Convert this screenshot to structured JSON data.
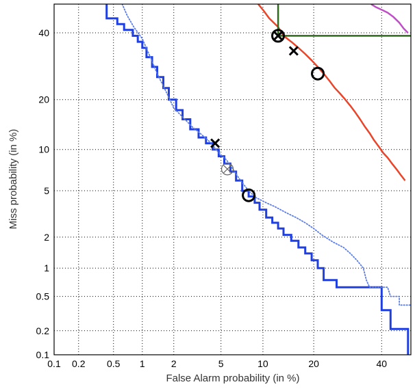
{
  "chart_data": {
    "type": "line",
    "title": "",
    "xlabel": "False Alarm probability (in %)",
    "ylabel": "Miss probability (in %)",
    "scale": "normal-deviate (probit) on both axes",
    "xlim": [
      0.1,
      50
    ],
    "ylim": [
      0.1,
      50
    ],
    "grid": true,
    "legend": "none",
    "x_ticks": [
      {
        "value": 0.1,
        "label": "0.1"
      },
      {
        "value": 0.2,
        "label": "0.2"
      },
      {
        "value": 0.5,
        "label": "0.5"
      },
      {
        "value": 1,
        "label": "1"
      },
      {
        "value": 2,
        "label": "2"
      },
      {
        "value": 5,
        "label": "5"
      },
      {
        "value": 10,
        "label": "10"
      },
      {
        "value": 20,
        "label": "20"
      },
      {
        "value": 40,
        "label": "40"
      }
    ],
    "y_ticks": [
      {
        "value": 0.1,
        "label": "0.1"
      },
      {
        "value": 0.2,
        "label": "0.2"
      },
      {
        "value": 0.5,
        "label": "0.5"
      },
      {
        "value": 1,
        "label": "1"
      },
      {
        "value": 2,
        "label": "2"
      },
      {
        "value": 5,
        "label": "5"
      },
      {
        "value": 10,
        "label": "10"
      },
      {
        "value": 20,
        "label": "20"
      },
      {
        "value": 40,
        "label": "40"
      }
    ],
    "series": [
      {
        "color": "#1f3fe0",
        "style": "solid",
        "width": 3,
        "step": true,
        "points": [
          [
            0.42,
            50
          ],
          [
            0.42,
            45
          ],
          [
            0.55,
            45
          ],
          [
            0.55,
            43
          ],
          [
            0.65,
            43
          ],
          [
            0.65,
            41
          ],
          [
            0.8,
            41
          ],
          [
            0.8,
            39
          ],
          [
            0.9,
            39
          ],
          [
            0.9,
            37
          ],
          [
            1,
            37
          ],
          [
            1,
            35
          ],
          [
            1.1,
            35
          ],
          [
            1.1,
            32
          ],
          [
            1.25,
            32
          ],
          [
            1.25,
            29
          ],
          [
            1.4,
            29
          ],
          [
            1.4,
            26
          ],
          [
            1.6,
            26
          ],
          [
            1.6,
            23
          ],
          [
            1.8,
            23
          ],
          [
            1.8,
            20
          ],
          [
            2.1,
            20
          ],
          [
            2.1,
            17.5
          ],
          [
            2.4,
            17.5
          ],
          [
            2.4,
            15.5
          ],
          [
            2.8,
            15.5
          ],
          [
            2.8,
            13.5
          ],
          [
            3.3,
            13.5
          ],
          [
            3.3,
            12
          ],
          [
            3.8,
            12
          ],
          [
            3.8,
            11
          ],
          [
            4.3,
            11
          ],
          [
            4.3,
            10
          ],
          [
            4.8,
            10
          ],
          [
            4.8,
            9
          ],
          [
            5.3,
            9
          ],
          [
            5.3,
            8
          ],
          [
            5.9,
            8
          ],
          [
            5.9,
            7
          ],
          [
            6.5,
            7
          ],
          [
            6.5,
            6
          ],
          [
            7.2,
            6
          ],
          [
            7.2,
            5
          ],
          [
            8,
            5
          ],
          [
            8,
            4.5
          ],
          [
            8.8,
            4.5
          ],
          [
            8.8,
            4
          ],
          [
            9.5,
            4
          ],
          [
            9.5,
            3.5
          ],
          [
            10.5,
            3.5
          ],
          [
            10.5,
            3
          ],
          [
            11.5,
            3
          ],
          [
            11.5,
            2.7
          ],
          [
            12.5,
            2.7
          ],
          [
            12.5,
            2.4
          ],
          [
            13.5,
            2.4
          ],
          [
            13.5,
            2.1
          ],
          [
            15,
            2.1
          ],
          [
            15,
            1.85
          ],
          [
            16.5,
            1.85
          ],
          [
            16.5,
            1.6
          ],
          [
            18,
            1.6
          ],
          [
            18,
            1.4
          ],
          [
            19.5,
            1.4
          ],
          [
            19.5,
            1.2
          ],
          [
            21,
            1.2
          ],
          [
            21,
            1
          ],
          [
            22.5,
            1
          ],
          [
            22.5,
            0.75
          ],
          [
            26,
            0.75
          ],
          [
            26,
            0.63
          ],
          [
            40,
            0.63
          ],
          [
            40,
            0.35
          ],
          [
            43,
            0.35
          ],
          [
            43,
            0.21
          ],
          [
            49,
            0.21
          ],
          [
            49,
            0.1
          ]
        ]
      },
      {
        "color": "#5a7ce8",
        "style": "dotted",
        "width": 1.8,
        "step": false,
        "points": [
          [
            0.62,
            50
          ],
          [
            0.7,
            46
          ],
          [
            0.82,
            42
          ],
          [
            1,
            38
          ],
          [
            1.2,
            32
          ],
          [
            1.4,
            27
          ],
          [
            1.7,
            22
          ],
          [
            2,
            18
          ],
          [
            2.4,
            16
          ],
          [
            2.9,
            14
          ],
          [
            3.5,
            12.5
          ],
          [
            4.2,
            11
          ],
          [
            4.8,
            9.5
          ],
          [
            5.5,
            8.5
          ],
          [
            6.2,
            7.2
          ],
          [
            7,
            6
          ],
          [
            8,
            5
          ],
          [
            9,
            4.4
          ],
          [
            10.5,
            4
          ],
          [
            12,
            3.7
          ],
          [
            14,
            3.3
          ],
          [
            16,
            3
          ],
          [
            18,
            2.7
          ],
          [
            20,
            2.4
          ],
          [
            22,
            2.1
          ],
          [
            25,
            1.8
          ],
          [
            28,
            1.6
          ],
          [
            30,
            1.4
          ],
          [
            32,
            1.2
          ],
          [
            34,
            1
          ],
          [
            35,
            0.75
          ],
          [
            36,
            0.63
          ],
          [
            42,
            0.63
          ],
          [
            43,
            0.5
          ],
          [
            46,
            0.5
          ],
          [
            46,
            0.4
          ],
          [
            50,
            0.4
          ]
        ]
      },
      {
        "color": "#e8452a",
        "style": "solid",
        "width": 2.5,
        "step": false,
        "points": [
          [
            9.3,
            50
          ],
          [
            10,
            48
          ],
          [
            11,
            45
          ],
          [
            12.5,
            42
          ],
          [
            13.5,
            39
          ],
          [
            15,
            37
          ],
          [
            16.5,
            35
          ],
          [
            18,
            33
          ],
          [
            19.5,
            31
          ],
          [
            21,
            29
          ],
          [
            22.5,
            27
          ],
          [
            24,
            25
          ],
          [
            25.5,
            23
          ],
          [
            27,
            21.5
          ],
          [
            28.5,
            20
          ],
          [
            30,
            18.5
          ],
          [
            31.5,
            17
          ],
          [
            33,
            15.5
          ],
          [
            34.5,
            14
          ],
          [
            36,
            12.8
          ],
          [
            37.5,
            11.5
          ],
          [
            39,
            10.5
          ],
          [
            40.5,
            9.5
          ],
          [
            42,
            8.8
          ],
          [
            43.5,
            8
          ],
          [
            45,
            7.3
          ],
          [
            46.5,
            6.6
          ],
          [
            48,
            6
          ]
        ]
      },
      {
        "color": "#c04ec8",
        "style": "solid",
        "width": 2.5,
        "step": false,
        "points": [
          [
            36.5,
            50
          ],
          [
            38,
            49
          ],
          [
            40,
            48
          ],
          [
            42,
            47
          ],
          [
            44,
            45.5
          ],
          [
            46,
            43.5
          ],
          [
            47.5,
            41.5
          ],
          [
            49,
            40
          ]
        ]
      },
      {
        "color": "#2d6a1a",
        "style": "solid",
        "width": 2.5,
        "step": false,
        "points": [
          [
            12.5,
            50
          ],
          [
            12.5,
            39
          ],
          [
            50,
            39
          ]
        ]
      }
    ],
    "markers": [
      {
        "shape": "x",
        "x": 4.5,
        "y": 11,
        "color": "#000000",
        "weight": "bold"
      },
      {
        "shape": "circle",
        "x": 8,
        "y": 4.6,
        "color": "#000000",
        "weight": "bold"
      },
      {
        "shape": "circled-x",
        "x": 5.6,
        "y": 7.3,
        "color": "#666666",
        "weight": "thin"
      },
      {
        "shape": "circled-x",
        "x": 12.5,
        "y": 39,
        "color": "#000000",
        "weight": "bold"
      },
      {
        "shape": "x",
        "x": 15.5,
        "y": 34,
        "color": "#000000",
        "weight": "bold"
      },
      {
        "shape": "circle",
        "x": 21,
        "y": 27,
        "color": "#000000",
        "weight": "bold"
      }
    ]
  }
}
